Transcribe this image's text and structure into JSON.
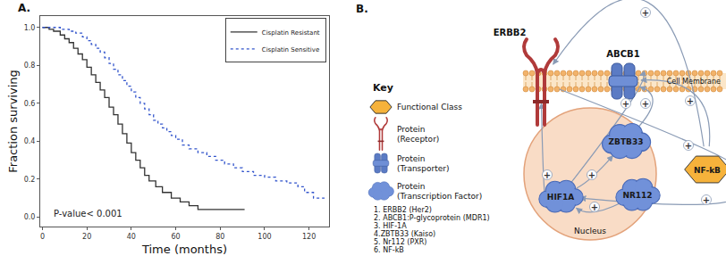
{
  "panel_labels": [
    "A.",
    "B."
  ],
  "chart_data": {
    "type": "line",
    "xlabel": "Time (months)",
    "ylabel": "Fraction surviving",
    "xlim": [
      -1,
      129
    ],
    "xticks": [
      0,
      20,
      40,
      60,
      80,
      100,
      120
    ],
    "ylim": [
      -0.05,
      1.06
    ],
    "yticks": [
      {
        "value": 0,
        "label": "0.0"
      },
      0.2,
      0.4,
      0.6,
      0.8,
      {
        "value": 1,
        "label": "1.0"
      }
    ],
    "grid": false,
    "legend": "top-right",
    "annotations": [
      "P-value< 0.001"
    ],
    "series": [
      {
        "name": "Cisplatin Resistant",
        "color": "#333333",
        "line_style": "solid",
        "x": [
          0,
          3,
          5,
          8,
          10,
          12,
          14,
          16,
          18,
          20,
          22,
          24,
          26,
          28,
          30,
          32,
          34,
          36,
          38,
          40,
          42,
          44,
          46,
          48,
          51,
          54,
          58,
          62,
          66,
          70,
          91
        ],
        "values": [
          1,
          0.99,
          0.98,
          0.96,
          0.94,
          0.92,
          0.89,
          0.86,
          0.83,
          0.79,
          0.75,
          0.71,
          0.67,
          0.63,
          0.58,
          0.54,
          0.49,
          0.44,
          0.39,
          0.34,
          0.3,
          0.26,
          0.22,
          0.19,
          0.16,
          0.13,
          0.1,
          0.08,
          0.06,
          0.04,
          0.04
        ]
      },
      {
        "name": "Cisplatin Sensitive",
        "color": "#3355cc",
        "line_style": "dot",
        "x": [
          0,
          8,
          12,
          15,
          18,
          20,
          22,
          24,
          26,
          28,
          30,
          32,
          34,
          36,
          38,
          40,
          42,
          44,
          46,
          48,
          50,
          52,
          54,
          56,
          58,
          60,
          63,
          66,
          70,
          74,
          78,
          82,
          86,
          90,
          95,
          100,
          105,
          110,
          115,
          118,
          122,
          127
        ],
        "values": [
          1,
          0.99,
          0.98,
          0.97,
          0.95,
          0.93,
          0.91,
          0.89,
          0.87,
          0.84,
          0.81,
          0.78,
          0.75,
          0.72,
          0.69,
          0.66,
          0.63,
          0.6,
          0.57,
          0.54,
          0.51,
          0.49,
          0.47,
          0.45,
          0.43,
          0.41,
          0.38,
          0.36,
          0.34,
          0.32,
          0.3,
          0.28,
          0.26,
          0.24,
          0.22,
          0.21,
          0.19,
          0.18,
          0.16,
          0.13,
          0.1,
          0.1
        ]
      }
    ]
  },
  "diagram": {
    "key": {
      "title": "Key",
      "items": [
        {
          "shape": "hexagon",
          "label": [
            "Functional Class"
          ]
        },
        {
          "shape": "receptor",
          "label": [
            "Protein",
            "(Receptor)"
          ]
        },
        {
          "shape": "transporter",
          "label": [
            "Protein",
            "(Transporter)"
          ]
        },
        {
          "shape": "cloud",
          "label": [
            "Protein",
            "(Transcription Factor)"
          ]
        }
      ]
    },
    "list": [
      "1. ERBB2 (Her2)",
      "2. ABCB1:P-glycoprotein (MDR1)",
      "3. HIF-1A",
      "4.ZBTB33 (Kaiso)",
      "5. Nr112 (PXR)",
      "6. NF-kB"
    ],
    "membrane_label": "Cell Membrane",
    "nucleus_label": "Nucleus",
    "nodes": [
      {
        "label": "ERBB2",
        "shape": "receptor"
      },
      {
        "label": "ABCB1",
        "shape": "transporter"
      },
      {
        "label": "ZBTB33",
        "shape": "cloud"
      },
      {
        "label": "HIF1A",
        "shape": "cloud"
      },
      {
        "label": "NR112",
        "shape": "cloud"
      },
      {
        "label": "NF-kB",
        "shape": "hexagon"
      }
    ],
    "edges": [
      {
        "from": "NF-kB",
        "to": "ERBB2",
        "sign": "+"
      },
      {
        "from": "NF-kB",
        "to": "ABCB1",
        "sign": "+"
      },
      {
        "from": "ERBB2",
        "to": "NF-kB",
        "sign": "+"
      },
      {
        "from": "HIF1A",
        "to": "ABCB1",
        "sign": "+"
      },
      {
        "from": "ZBTB33",
        "to": "ABCB1",
        "sign": "+"
      },
      {
        "from": "HIF1A",
        "to": "ERBB2",
        "sign": "+"
      },
      {
        "from": "NR112",
        "to": "HIF1A",
        "sign": "+"
      },
      {
        "from": "HIF1A",
        "to": "ZBTB33",
        "sign": "+"
      },
      {
        "from": "NF-kB",
        "to": "HIF1A",
        "sign": "+"
      }
    ]
  }
}
